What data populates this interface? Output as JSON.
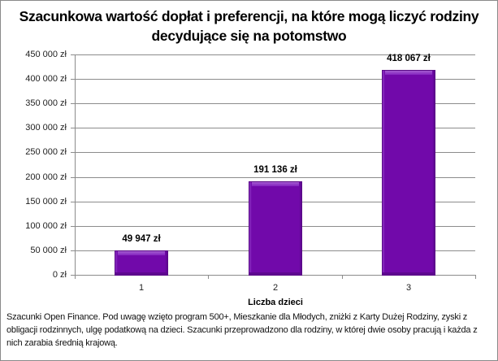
{
  "chart_data": {
    "type": "bar",
    "title": "Szacunkowa wartość dopłat i preferencji, na które mogą liczyć rodziny decydujące się na potomstwo",
    "title_lines": [
      "Szacunkowa wartość dopłat i preferencji, na które mogą liczyć rodziny",
      "decydujące się na potomstwo"
    ],
    "xlabel": "Liczba  dzieci",
    "ylabel": "",
    "categories": [
      "1",
      "2",
      "3"
    ],
    "values": [
      49947,
      191136,
      418067
    ],
    "data_labels": [
      "49 947 zł",
      "191 136 zł",
      "418 067 zł"
    ],
    "ylim": [
      0,
      450000
    ],
    "yticks": [
      0,
      50000,
      100000,
      150000,
      200000,
      250000,
      300000,
      350000,
      400000,
      450000
    ],
    "ytick_labels": [
      "0 zł",
      "50 000 zł",
      "100 000 zł",
      "150 000 zł",
      "200 000 zł",
      "250 000 zł",
      "300 000 zł",
      "350 000 zł",
      "400 000 zł",
      "450 000 zł"
    ],
    "grid": true,
    "legend": null,
    "bar_color": "#7109aa",
    "footnote": "Szacunki Open Finance. Pod uwagę wzięto program 500+, Mieszkanie dla Młodych, zniżki z Karty Dużej Rodziny, zyski z obligacji rodzinnych, ulgę podatkową na dzieci. Szacunki przeprowadzono dla rodziny, w której dwie osoby pracują i każda z nich zarabia średnią krajową."
  }
}
